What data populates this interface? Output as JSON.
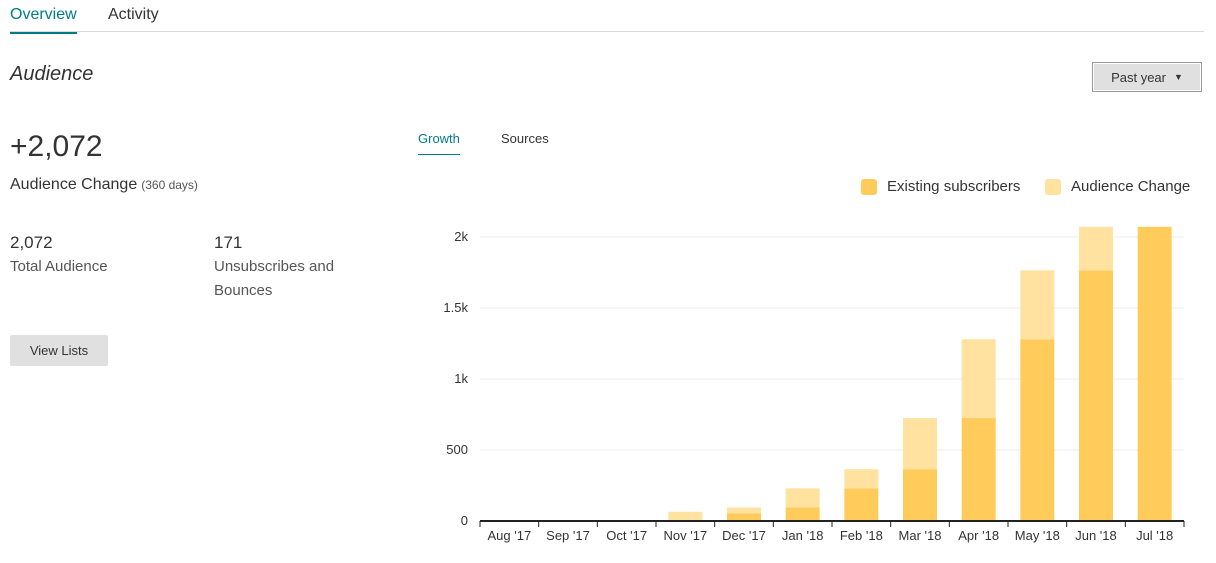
{
  "tabs": [
    {
      "label": "Overview",
      "active": true
    },
    {
      "label": "Activity",
      "active": false
    }
  ],
  "section": {
    "title": "Audience"
  },
  "range_select": {
    "label": "Past year",
    "icon": "chevron-down-icon"
  },
  "summary": {
    "change_value": "+2,072",
    "change_label": "Audience Change",
    "change_period": "(360 days)",
    "total_value": "2,072",
    "total_label": "Total Audience",
    "unsub_value": "171",
    "unsub_label": "Unsubscribes and Bounces",
    "view_lists_label": "View Lists"
  },
  "chart_tabs": [
    {
      "label": "Growth",
      "active": true
    },
    {
      "label": "Sources",
      "active": false
    }
  ],
  "colors": {
    "accent": "#007c89",
    "existing": "#ffcc5c",
    "change": "#ffe2a0"
  },
  "chart_data": {
    "type": "bar",
    "stacked": true,
    "categories": [
      "Aug '17",
      "Sep '17",
      "Oct '17",
      "Nov '17",
      "Dec '17",
      "Jan '18",
      "Feb '18",
      "Mar '18",
      "Apr '18",
      "May '18",
      "Jun '18",
      "Jul '18"
    ],
    "series": [
      {
        "name": "Existing subscribers",
        "values": [
          0,
          0,
          0,
          0,
          55,
          95,
          230,
          365,
          725,
          1280,
          1765,
          2072
        ]
      },
      {
        "name": "Audience Change",
        "values": [
          0,
          0,
          0,
          65,
          40,
          135,
          135,
          360,
          555,
          485,
          307,
          0
        ]
      }
    ],
    "yticks": [
      {
        "value": 0,
        "label": "0"
      },
      {
        "value": 500,
        "label": "500"
      },
      {
        "value": 1000,
        "label": "1k"
      },
      {
        "value": 1500,
        "label": "1.5k"
      },
      {
        "value": 2000,
        "label": "2k"
      }
    ],
    "ylim": [
      0,
      2000
    ],
    "grid": true,
    "legend_position": "top-right"
  }
}
